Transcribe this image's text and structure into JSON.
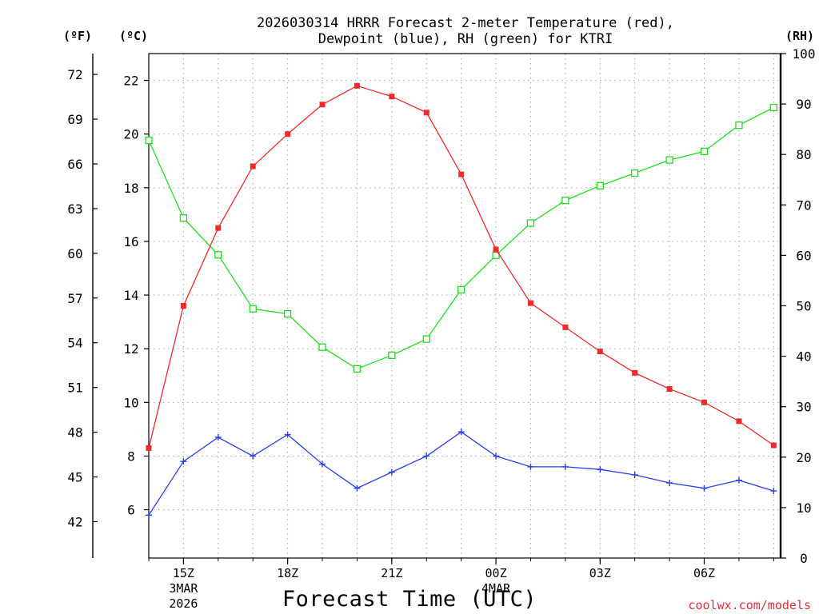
{
  "chart_data": {
    "type": "line",
    "title_line1": "2026030314 HRRR Forecast 2-meter Temperature (red),",
    "title_line2": "Dewpoint (blue), RH (green) for KTRI",
    "xlabel": "Forecast Time (UTC)",
    "credit": "coolwx.com/models",
    "units": {
      "fahrenheit": "(ºF)",
      "celsius": "(ºC)",
      "rh": "(RH)"
    },
    "x": [
      14,
      15,
      16,
      17,
      18,
      19,
      20,
      21,
      22,
      23,
      24,
      25,
      26,
      27,
      28,
      29,
      30,
      31,
      32
    ],
    "xlim": [
      14,
      32.2
    ],
    "x_ticks": [
      {
        "x": 15,
        "label": "15Z",
        "sub1": "3MAR",
        "sub2": "2026"
      },
      {
        "x": 18,
        "label": "18Z",
        "sub1": "",
        "sub2": ""
      },
      {
        "x": 21,
        "label": "21Z",
        "sub1": "",
        "sub2": ""
      },
      {
        "x": 24,
        "label": "00Z",
        "sub1": "4MAR",
        "sub2": ""
      },
      {
        "x": 27,
        "label": "03Z",
        "sub1": "",
        "sub2": ""
      },
      {
        "x": 30,
        "label": "06Z",
        "sub1": "",
        "sub2": ""
      }
    ],
    "ylim_c": [
      4.2,
      23
    ],
    "ylim_rh": [
      0,
      100
    ],
    "yticks_c": [
      6,
      8,
      10,
      12,
      14,
      16,
      18,
      20,
      22
    ],
    "yticks_f": [
      42,
      45,
      48,
      51,
      54,
      57,
      60,
      63,
      66,
      69,
      72
    ],
    "yticks_rh": [
      0,
      10,
      20,
      30,
      40,
      50,
      60,
      70,
      80,
      90,
      100
    ],
    "series": [
      {
        "name": "Temperature",
        "axis": "c",
        "color": "#ee2b2b",
        "marker": "filled-square",
        "values": [
          8.3,
          13.6,
          16.5,
          18.8,
          20.0,
          21.1,
          21.8,
          21.4,
          20.8,
          18.5,
          15.7,
          13.7,
          12.8,
          11.9,
          11.1,
          10.5,
          10.0,
          9.3,
          8.4
        ]
      },
      {
        "name": "Dewpoint",
        "axis": "c",
        "color": "#2b3fe8",
        "marker": "plus",
        "values": [
          5.8,
          7.8,
          8.7,
          8.0,
          8.8,
          7.7,
          6.8,
          7.4,
          8.0,
          8.9,
          8.0,
          7.6,
          7.6,
          7.5,
          7.3,
          7.0,
          6.8,
          7.1,
          6.7
        ]
      },
      {
        "name": "RH",
        "axis": "rh",
        "color": "#22dd22",
        "marker": "open-square",
        "values": [
          82.8,
          67.4,
          60.1,
          49.4,
          48.4,
          41.8,
          37.5,
          40.2,
          43.4,
          53.2,
          60.0,
          66.4,
          70.9,
          73.8,
          76.3,
          78.9,
          80.6,
          85.8,
          89.3
        ]
      }
    ]
  }
}
